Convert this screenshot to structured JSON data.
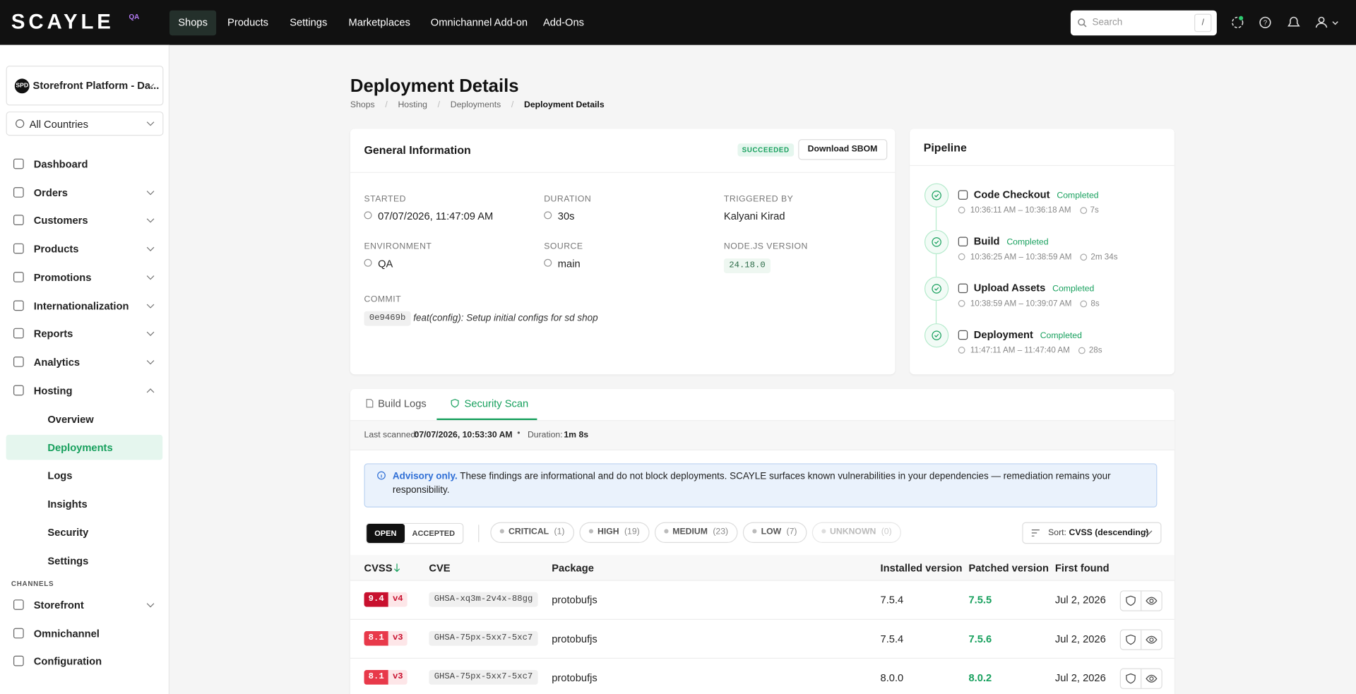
{
  "nav": {
    "brand": "SCAYLE",
    "env": "QA",
    "items": [
      "Shops",
      "Products",
      "Settings",
      "Marketplaces",
      "Omnichannel Add-on",
      "Add-Ons"
    ],
    "search": "Search",
    "search_key": "/"
  },
  "sidebar": {
    "shop_badge": "SPD",
    "shop": "Storefront Platform - Da...",
    "country": "All Countries",
    "items": [
      "Dashboard",
      "Orders",
      "Customers",
      "Products",
      "Promotions",
      "Internationalization",
      "Reports",
      "Analytics",
      "Hosting"
    ],
    "hosting_items": [
      "Overview",
      "Deployments",
      "Logs",
      "Insights",
      "Security",
      "Settings"
    ],
    "channels_heading": "CHANNELS",
    "channels": [
      "Storefront",
      "Omnichannel",
      "Configuration"
    ]
  },
  "header": {
    "title": "Deployment Details",
    "breadcrumbs": [
      "Shops",
      "Hosting",
      "Deployments",
      "Deployment Details"
    ]
  },
  "general": {
    "title": "General Information",
    "status": "SUCCEEDED",
    "download": "Download SBOM",
    "fields": [
      {
        "label": "STARTED",
        "value": "07/07/2026, 11:47:09 AM"
      },
      {
        "label": "DURATION",
        "value": "30s"
      },
      {
        "label": "TRIGGERED BY",
        "value": "Kalyani Kirad"
      },
      {
        "label": "ENVIRONMENT",
        "value": "QA"
      },
      {
        "label": "SOURCE",
        "value": "main"
      },
      {
        "label": "NODE.JS VERSION",
        "value": "24.18.0"
      }
    ],
    "commit_label": "COMMIT",
    "commit_hash": "0e9469b",
    "commit_message": "feat(config): Setup initial configs for sd shop"
  },
  "pipeline": {
    "title": "Pipeline",
    "steps": [
      {
        "name": "Code Checkout",
        "status": "Completed",
        "time": "10:36:11 AM – 10:36:18 AM",
        "duration": "7s"
      },
      {
        "name": "Build",
        "status": "Completed",
        "time": "10:36:25 AM – 10:38:59 AM",
        "duration": "2m 34s"
      },
      {
        "name": "Upload Assets",
        "status": "Completed",
        "time": "10:38:59 AM – 10:39:07 AM",
        "duration": "8s"
      },
      {
        "name": "Deployment",
        "status": "Completed",
        "time": "11:47:11 AM – 11:47:40 AM",
        "duration": "28s"
      }
    ]
  },
  "tabs": [
    "Build Logs",
    "Security Scan"
  ],
  "scan": {
    "last_label": "Last scanned:",
    "last_value": "07/07/2026, 10:53:30 AM",
    "duration_label": "Duration:",
    "duration_value": "1m 8s"
  },
  "advisory": {
    "lead": "Advisory only.",
    "text": "These findings are informational and do not block deployments. SCAYLE surfaces known vulnerabilities in your dependencies — remediation remains your responsibility."
  },
  "filters": {
    "toggle": [
      "OPEN",
      "ACCEPTED"
    ],
    "severities": [
      {
        "label": "CRITICAL",
        "count": "(1)"
      },
      {
        "label": "HIGH",
        "count": "(19)"
      },
      {
        "label": "MEDIUM",
        "count": "(23)"
      },
      {
        "label": "LOW",
        "count": "(7)"
      },
      {
        "label": "UNKNOWN",
        "count": "(0)"
      }
    ],
    "sort_label": "Sort:",
    "sort_value": "CVSS (descending)"
  },
  "table": {
    "columns": [
      "CVSS",
      "CVE",
      "Package",
      "Installed version",
      "Patched version",
      "First found"
    ],
    "rows": [
      {
        "cvss": 9.4,
        "cvss_version": "v4",
        "cve": "GHSA-xq3m-2v4x-88gg",
        "package": "protobufjs",
        "installed": "7.5.4",
        "patched": "7.5.5",
        "first_found": "Jul 2, 2026"
      },
      {
        "cvss": 8.1,
        "cvss_version": "v3",
        "cve": "GHSA-75px-5xx7-5xc7",
        "package": "protobufjs",
        "installed": "7.5.4",
        "patched": "7.5.6",
        "first_found": "Jul 2, 2026"
      },
      {
        "cvss": 8.1,
        "cvss_version": "v3",
        "cve": "GHSA-75px-5xx7-5xc7",
        "package": "protobufjs",
        "installed": "8.0.0",
        "patched": "8.0.2",
        "first_found": "Jul 2, 2026"
      }
    ]
  }
}
